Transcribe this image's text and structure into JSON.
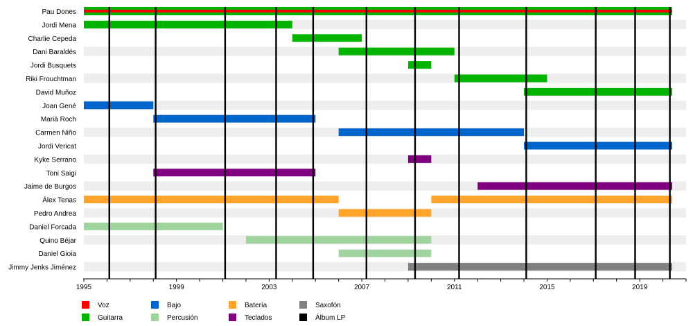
{
  "chart_data": {
    "type": "timeline",
    "x_range": [
      1995,
      2021
    ],
    "x_ticks": [
      "1995",
      "1999",
      "2003",
      "2007",
      "2011",
      "2015",
      "2019"
    ],
    "members": [
      {
        "name": "Pau Dones",
        "highlight": true,
        "bars": [
          {
            "role": "Voz",
            "start": 1995,
            "end": 2020.4
          }
        ]
      },
      {
        "name": "Jordi Mena",
        "bars": [
          {
            "role": "Guitarra",
            "start": 1995,
            "end": 2004
          }
        ]
      },
      {
        "name": "Charlie Cepeda",
        "bars": [
          {
            "role": "Guitarra",
            "start": 2004,
            "end": 2007
          }
        ]
      },
      {
        "name": "Dani Baraldés",
        "bars": [
          {
            "role": "Guitarra",
            "start": 2006,
            "end": 2011
          }
        ]
      },
      {
        "name": "Jordi Busquets",
        "bars": [
          {
            "role": "Guitarra",
            "start": 2009,
            "end": 2010
          }
        ]
      },
      {
        "name": "Riki Frouchtman",
        "bars": [
          {
            "role": "Guitarra",
            "start": 2011,
            "end": 2015
          }
        ]
      },
      {
        "name": "David Muñoz",
        "bars": [
          {
            "role": "Guitarra",
            "start": 2014,
            "end": 2020.4
          }
        ]
      },
      {
        "name": "Joan Gené",
        "bars": [
          {
            "role": "Bajo",
            "start": 1995,
            "end": 1998
          }
        ]
      },
      {
        "name": "Marià Roch",
        "bars": [
          {
            "role": "Bajo",
            "start": 1998,
            "end": 2005
          }
        ]
      },
      {
        "name": "Carmen Niño",
        "bars": [
          {
            "role": "Bajo",
            "start": 2006,
            "end": 2014
          }
        ]
      },
      {
        "name": "Jordi Vericat",
        "bars": [
          {
            "role": "Bajo",
            "start": 2014,
            "end": 2020.4
          }
        ]
      },
      {
        "name": "Kyke Serrano",
        "bars": [
          {
            "role": "Teclados",
            "start": 2009,
            "end": 2010
          }
        ]
      },
      {
        "name": "Toni Saigi",
        "bars": [
          {
            "role": "Teclados",
            "start": 1998,
            "end": 2005
          }
        ]
      },
      {
        "name": "Jaime de Burgos",
        "bars": [
          {
            "role": "Teclados",
            "start": 2012,
            "end": 2020.4
          }
        ]
      },
      {
        "name": "Álex Tenas",
        "bars": [
          {
            "role": "Batería",
            "start": 1995,
            "end": 2006
          },
          {
            "role": "Batería",
            "start": 2010,
            "end": 2020.4
          }
        ]
      },
      {
        "name": "Pedro Andrea",
        "bars": [
          {
            "role": "Batería",
            "start": 2006,
            "end": 2010
          }
        ]
      },
      {
        "name": "Daniel Forcada",
        "bars": [
          {
            "role": "Percusión",
            "start": 1995,
            "end": 2001
          }
        ]
      },
      {
        "name": "Quino Béjar",
        "bars": [
          {
            "role": "Percusión",
            "start": 2002,
            "end": 2010
          }
        ]
      },
      {
        "name": "Daniel Gioia",
        "bars": [
          {
            "role": "Percusión",
            "start": 2006,
            "end": 2010
          }
        ]
      },
      {
        "name": "Jimmy Jenks Jiménez",
        "bars": [
          {
            "role": "Saxofón",
            "start": 2009,
            "end": 2020.4
          }
        ]
      }
    ],
    "albums": [
      1996.1,
      1998.1,
      2001.1,
      2003.3,
      2004.9,
      2007.2,
      2009.3,
      2011.2,
      2014.1,
      2017.1,
      2018.8,
      2020.3
    ],
    "legend": [
      {
        "label": "Voz",
        "color": "#ff0000"
      },
      {
        "label": "Guitarra",
        "color": "#00b400"
      },
      {
        "label": "Bajo",
        "color": "#0066cc"
      },
      {
        "label": "Percusión",
        "color": "#9fd49f"
      },
      {
        "label": "Batería",
        "color": "#ffa42a"
      },
      {
        "label": "Teclados",
        "color": "#800080"
      },
      {
        "label": "Saxofón",
        "color": "#808080"
      },
      {
        "label": "Álbum LP",
        "color": "#000000"
      }
    ],
    "highlight_label_color": "#00008b"
  }
}
